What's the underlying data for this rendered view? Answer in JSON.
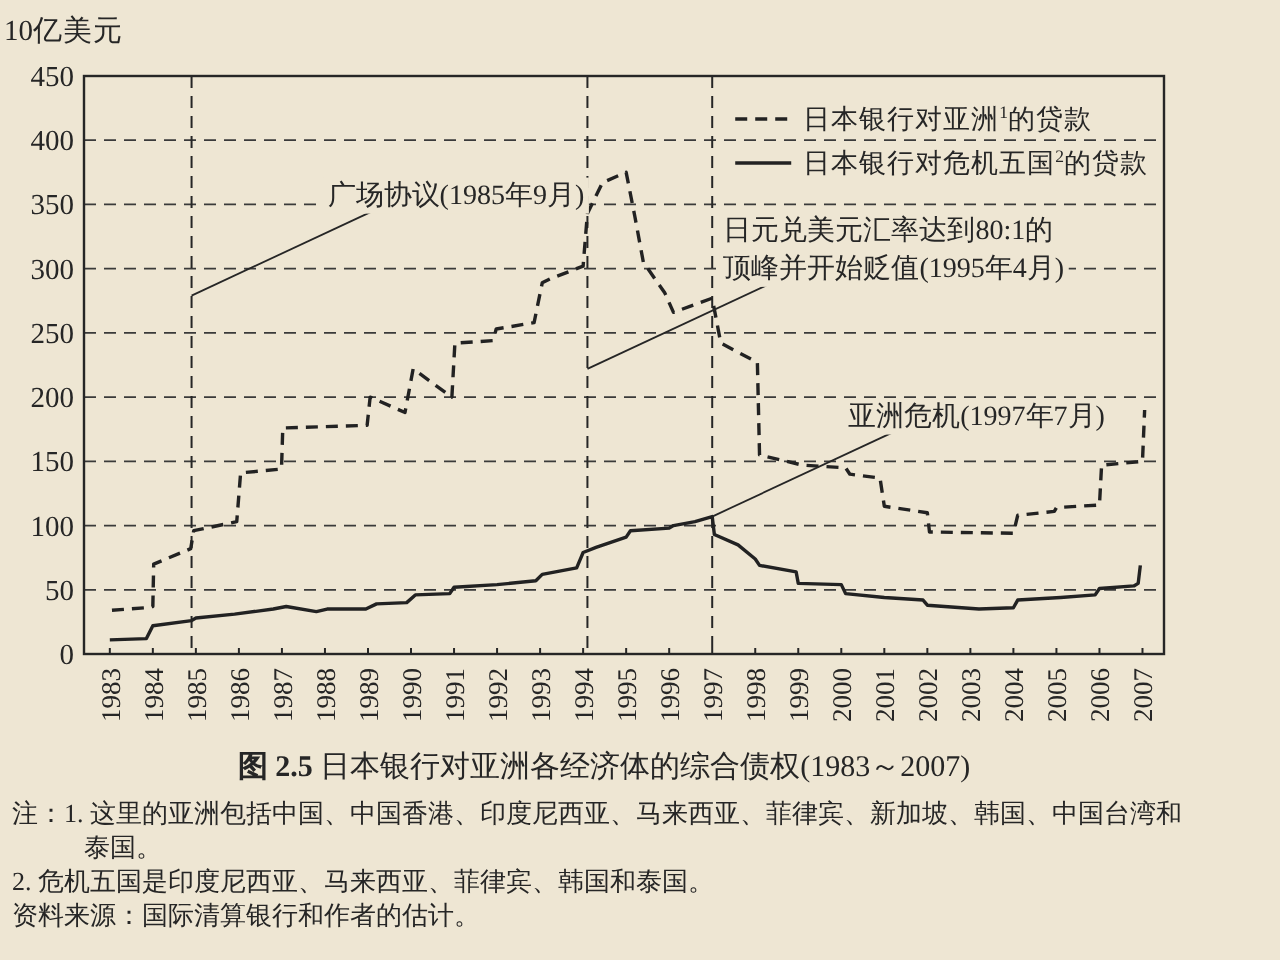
{
  "chart_data": {
    "type": "line",
    "title": "**图 2.5**  日本银行对亚洲各经济体的综合债权(1983～2007)",
    "ylabel": "10亿美元",
    "series": [
      {
        "name": "日本银行对亚洲$^{1}$的贷款",
        "color": "#222222",
        "line_style": "dashed",
        "x": [
          1983.05,
          1983.84,
          1984.0,
          1984.02,
          1984.88,
          1984.95,
          1985.95,
          1986.04,
          1986.99,
          1987.02,
          1988.98,
          1989.05,
          1989.86,
          1990.05,
          1990.95,
          1991.02,
          1991.91,
          1991.98,
          1992.86,
          1993.05,
          1993.23,
          1994.0,
          1994.1,
          1994.45,
          1995.0,
          1995.2,
          1995.4,
          1995.9,
          1996.1,
          1997.0,
          1997.2,
          1998.05,
          1998.1,
          1999.1,
          2000.1,
          2000.2,
          2000.9,
          2001.0,
          2002.0,
          2002.05,
          2004.0,
          2004.1,
          2004.95,
          2005.0,
          2006.0,
          2006.05,
          2007.0,
          2007.05
        ],
        "values": [
          34,
          36,
          37,
          70,
          82,
          96,
          103,
          141,
          144,
          176,
          178,
          200,
          188,
          222,
          200,
          242,
          244,
          253,
          258,
          289,
          292,
          302,
          343,
          367,
          375,
          341,
          305,
          281,
          266,
          277,
          242,
          227,
          155,
          147,
          145,
          140,
          137,
          115,
          110,
          95,
          94,
          108,
          111,
          114,
          116,
          147,
          150,
          190
        ]
      },
      {
        "name": "日本银行对危机五国$^{2}$的贷款",
        "color": "#222222",
        "line_style": "solid",
        "x": [
          1983.0,
          1983.85,
          1984.0,
          1984.9,
          1985.0,
          1985.9,
          1986.8,
          1987.1,
          1987.8,
          1988.05,
          1988.95,
          1989.2,
          1989.9,
          1990.1,
          1990.9,
          1991.0,
          1992.0,
          1992.9,
          1993.05,
          1993.85,
          1993.95,
          1994.0,
          1994.3,
          1995.0,
          1995.1,
          1996.0,
          1996.1,
          1996.6,
          1997.0,
          1997.05,
          1997.6,
          1998.0,
          1998.1,
          1998.95,
          1999.0,
          2000.0,
          2000.1,
          2001.0,
          2001.9,
          2002.0,
          2003.2,
          2004.0,
          2004.1,
          2005.1,
          2005.9,
          2006.0,
          2006.8,
          2006.9,
          2006.95
        ],
        "values": [
          11,
          12,
          22,
          26,
          28,
          31,
          35,
          37,
          33,
          35,
          35,
          39,
          40,
          46,
          47,
          52,
          54,
          57,
          62,
          67,
          75,
          79,
          83,
          91,
          96,
          98,
          100,
          103,
          107,
          93,
          85,
          74,
          69,
          64,
          55,
          54,
          47,
          44,
          42,
          38,
          35,
          36,
          42,
          44,
          46,
          51,
          53,
          55,
          69
        ]
      }
    ],
    "xlim": [
      1982.4,
      2007.5
    ],
    "xticks": [
      1983,
      1984,
      1985,
      1986,
      1987,
      1988,
      1989,
      1990,
      1991,
      1992,
      1993,
      1994,
      1995,
      1996,
      1997,
      1998,
      1999,
      2000,
      2001,
      2002,
      2003,
      2004,
      2005,
      2006,
      2007
    ],
    "ylim": [
      0,
      450
    ],
    "yticks": [
      0,
      50,
      100,
      150,
      200,
      250,
      300,
      350,
      400,
      450
    ],
    "grid": "y",
    "legend": "top right",
    "ref_lines": [
      {
        "axis": "x",
        "value": 1984.9,
        "line_style": "dashed",
        "label": "广场协议(1985年9月)"
      },
      {
        "axis": "x",
        "value": 1994.1,
        "line_style": "dashed"
      },
      {
        "axis": "x",
        "value": 1997.0,
        "line_style": "dashed"
      }
    ],
    "annotations": [
      {
        "text": "日元兑美元汇率达到80:1的顶峰并开始贬值(1995年4月)",
        "x": 1994.1,
        "y": 222
      },
      {
        "text": "亚洲危机(1997年7月)",
        "x": 1997.0,
        "y": 107
      },
      "注：1. 这里的亚洲包括中国、中国香港、印度尼西亚、马来西亚、菲律宾、新加坡、韩国、中国台湾和泰国。",
      "2. 危机五国是印度尼西亚、马来西亚、菲律宾、韩国和泰国。",
      "资料来源：国际清算银行和作者的估计。"
    ]
  }
}
